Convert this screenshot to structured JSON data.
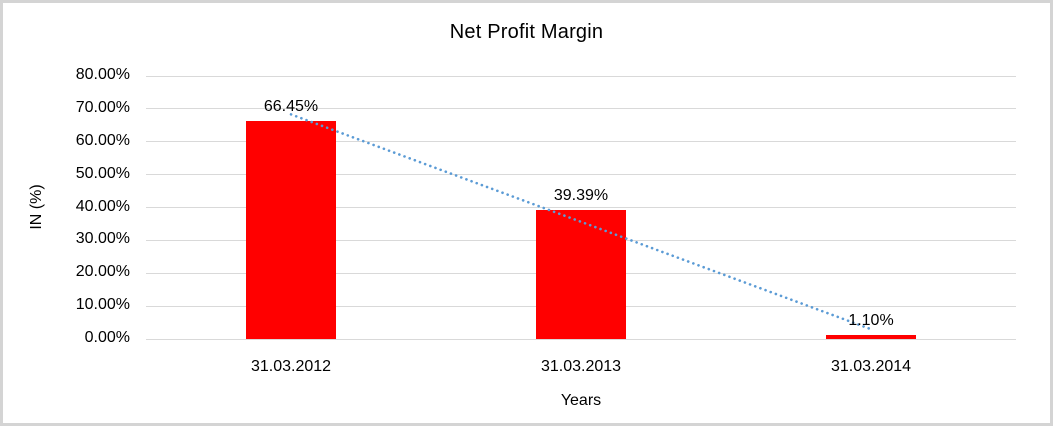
{
  "chart_data": {
    "type": "bar",
    "title": "Net Profit Margin",
    "categories": [
      "31.03.2012",
      "31.03.2013",
      "31.03.2014"
    ],
    "values": [
      66.45,
      39.39,
      1.1
    ],
    "data_labels": [
      "66.45%",
      "39.39%",
      "1.10%"
    ],
    "xlabel": "Years",
    "ylabel": "IN (%)",
    "ylim": [
      0,
      80
    ],
    "ytick_step": 10,
    "ytick_labels": [
      "0.00%",
      "10.00%",
      "20.00%",
      "30.00%",
      "40.00%",
      "50.00%",
      "60.00%",
      "70.00%",
      "80.00%"
    ],
    "bar_color": "#FF0000",
    "gridline_color": "#D9D9D9",
    "grid": true,
    "legend": "none",
    "trendline": {
      "type": "linear",
      "style": "dotted",
      "color": "#5B9BD5"
    }
  }
}
